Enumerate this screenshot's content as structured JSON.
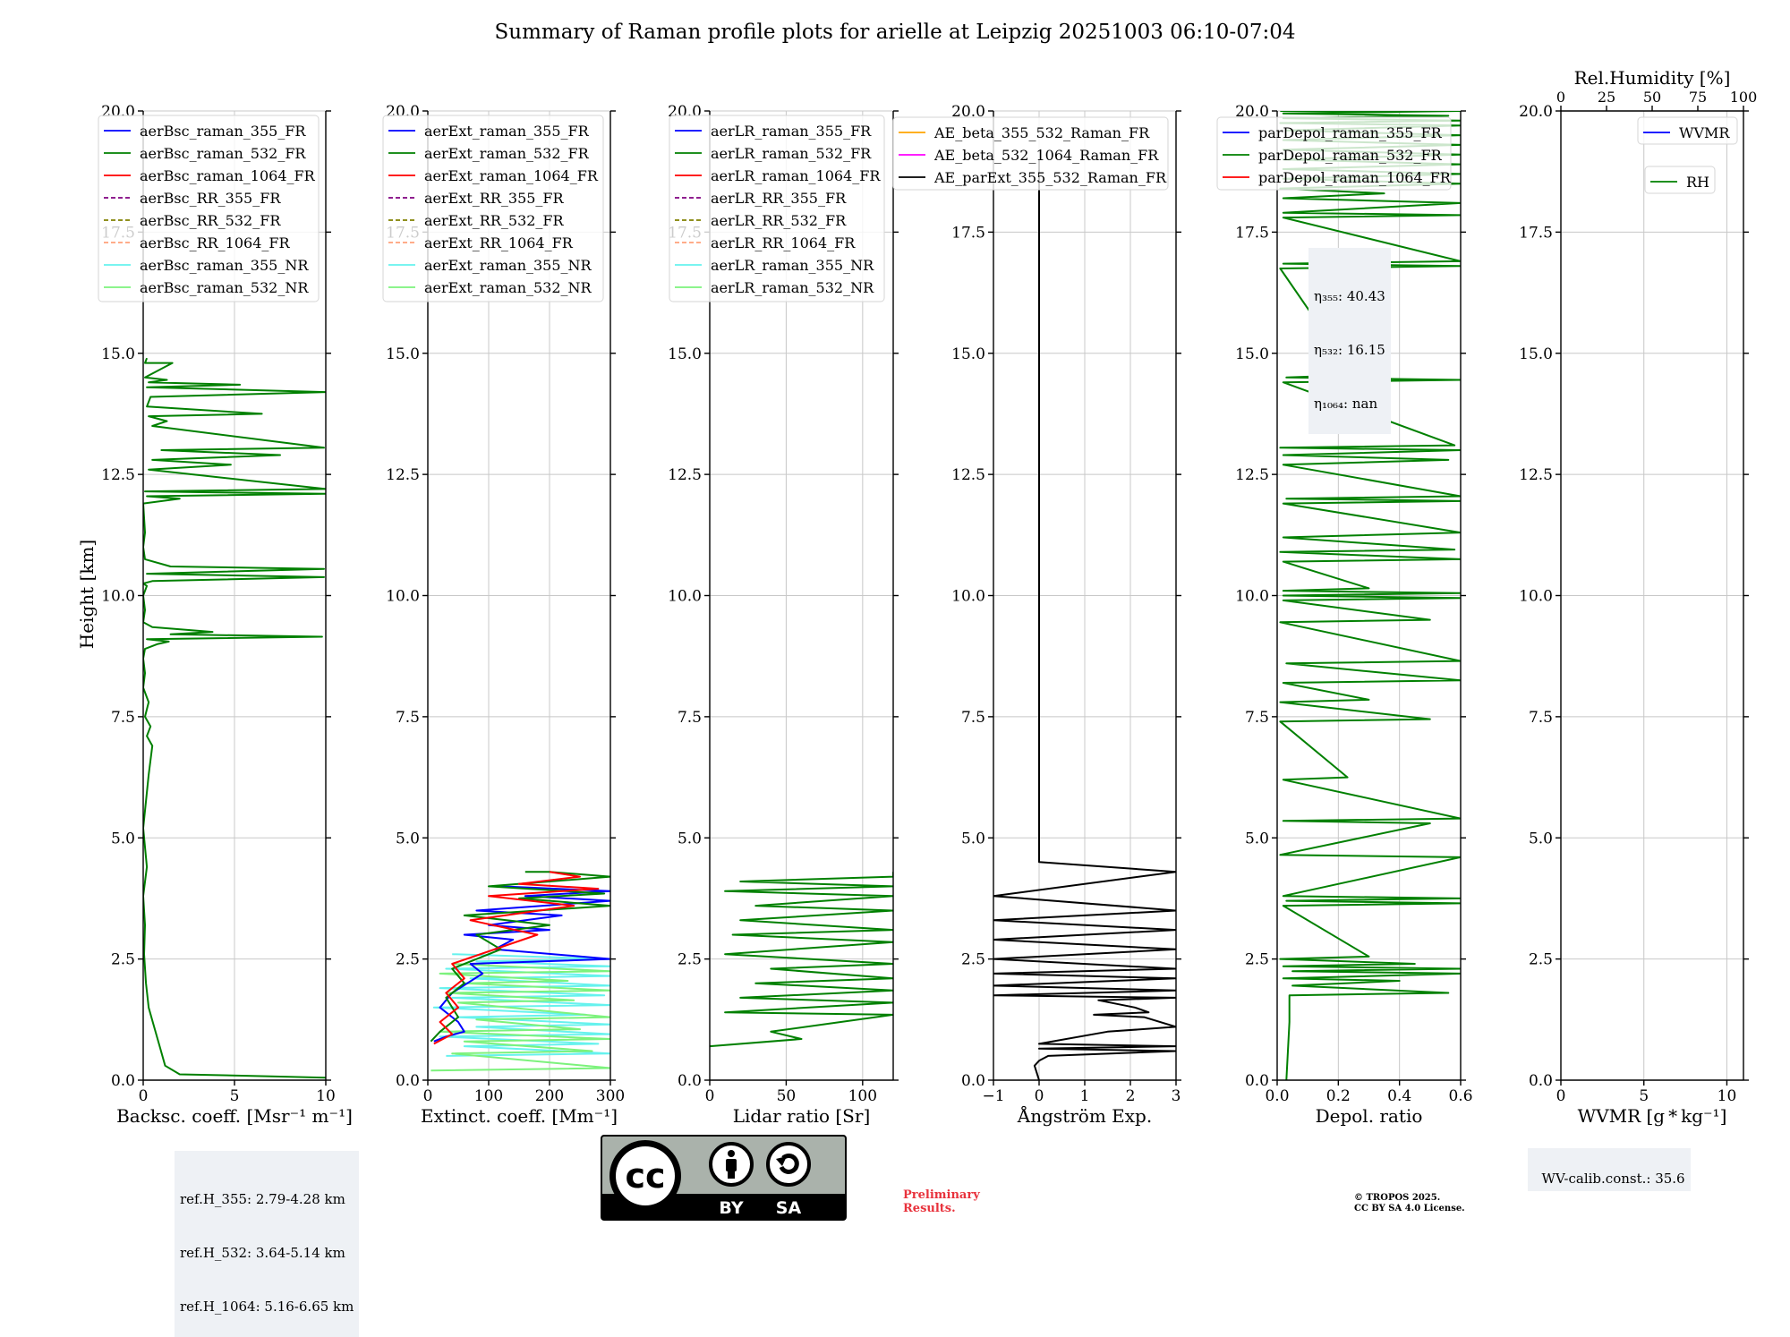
{
  "figure": {
    "title": "Summary of Raman profile plots for arielle at Leipzig 20251003 06:10-07:04",
    "ylabel": "Height [km]",
    "ylim": [
      0,
      20
    ],
    "yticks": [
      "0.0",
      "2.5",
      "5.0",
      "7.5",
      "10.0",
      "12.5",
      "15.0",
      "17.5",
      "20.0"
    ]
  },
  "colors": {
    "blue": "#0000ff",
    "green": "#008000",
    "red": "#ff0000",
    "purple": "#800080",
    "olive": "#808000",
    "salmon": "#ffa07a",
    "cyan": "#66f2ee",
    "lightgreen": "#7cf27c",
    "orange": "#ffa500",
    "magenta": "#ff00ff",
    "black": "#000000"
  },
  "chart_data": [
    {
      "type": "line",
      "id": "bsc",
      "xlabel": "Backsc. coeff. [Msr⁻¹ m⁻¹]",
      "xlim": [
        0,
        10
      ],
      "xticks": [
        0,
        5,
        10
      ],
      "xticklabels": [
        "0",
        "5",
        "10"
      ],
      "legend": [
        {
          "label": "aerBsc_raman_355_FR",
          "color": "#0000ff",
          "style": "solid"
        },
        {
          "label": "aerBsc_raman_532_FR",
          "color": "#008000",
          "style": "solid"
        },
        {
          "label": "aerBsc_raman_1064_FR",
          "color": "#ff0000",
          "style": "solid"
        },
        {
          "label": "aerBsc_RR_355_FR",
          "color": "#800080",
          "style": "dashed"
        },
        {
          "label": "aerBsc_RR_532_FR",
          "color": "#808000",
          "style": "dashed"
        },
        {
          "label": "aerBsc_RR_1064_FR",
          "color": "#ffa07a",
          "style": "dashed"
        },
        {
          "label": "aerBsc_raman_355_NR",
          "color": "#66f2ee",
          "style": "solid"
        },
        {
          "label": "aerBsc_raman_532_NR",
          "color": "#7cf27c",
          "style": "solid"
        }
      ],
      "series": [
        {
          "name": "aerBsc_raman_532_FR",
          "color": "#008000",
          "x": [
            10,
            7,
            2,
            1.2,
            0.9,
            0.6,
            0.3,
            0.15,
            0.05,
            0.1,
            0,
            0.2,
            0,
            0.3,
            0.5,
            0.2,
            0.4,
            0.1,
            0.3,
            0,
            0.1,
            0,
            0.1,
            0.8,
            1.4,
            0.2,
            9.8,
            1.5,
            3.8,
            0.5,
            0,
            0.1,
            0,
            0.2,
            0,
            0.5,
            9.9,
            0.2,
            9.9,
            1.5,
            0.1,
            0,
            0.1,
            0,
            2,
            0.2,
            10,
            0.1,
            10,
            0.3,
            4.8,
            0.5,
            7.5,
            1,
            9.9,
            0.5,
            1.3,
            0.3,
            6.5,
            0.2,
            0.4,
            10,
            0.2,
            5.3,
            0.3,
            1.3,
            0.1,
            1.6,
            0.1,
            0.2
          ],
          "y": [
            0.05,
            0.08,
            0.12,
            0.3,
            0.7,
            1.1,
            1.5,
            2.0,
            2.6,
            3.2,
            3.8,
            4.4,
            5.2,
            6.3,
            6.9,
            7.1,
            7.3,
            7.5,
            7.8,
            8.1,
            8.4,
            8.7,
            8.9,
            9.0,
            9.05,
            9.1,
            9.15,
            9.2,
            9.25,
            9.35,
            9.45,
            9.7,
            10.0,
            10.2,
            10.25,
            10.3,
            10.38,
            10.45,
            10.55,
            10.6,
            10.75,
            11.0,
            11.3,
            11.9,
            12.0,
            12.05,
            12.1,
            12.15,
            12.2,
            12.6,
            12.7,
            12.8,
            12.9,
            13.0,
            13.05,
            13.5,
            13.6,
            13.7,
            13.75,
            13.9,
            14.1,
            14.2,
            14.3,
            14.35,
            14.4,
            14.45,
            14.5,
            14.8,
            14.8,
            14.9
          ]
        }
      ]
    },
    {
      "type": "line",
      "id": "ext",
      "xlabel": "Extinct. coeff. [Mm⁻¹]",
      "xlim": [
        0,
        300
      ],
      "xticks": [
        0,
        100,
        200,
        300
      ],
      "xticklabels": [
        "0",
        "100",
        "200",
        "300"
      ],
      "legend": [
        {
          "label": "aerExt_raman_355_FR",
          "color": "#0000ff",
          "style": "solid"
        },
        {
          "label": "aerExt_raman_532_FR",
          "color": "#008000",
          "style": "solid"
        },
        {
          "label": "aerExt_raman_1064_FR",
          "color": "#ff0000",
          "style": "solid"
        },
        {
          "label": "aerExt_RR_355_FR",
          "color": "#800080",
          "style": "dashed"
        },
        {
          "label": "aerExt_RR_532_FR",
          "color": "#808000",
          "style": "dashed"
        },
        {
          "label": "aerExt_RR_1064_FR",
          "color": "#ffa07a",
          "style": "dashed"
        },
        {
          "label": "aerExt_raman_355_NR",
          "color": "#66f2ee",
          "style": "solid"
        },
        {
          "label": "aerExt_raman_532_NR",
          "color": "#7cf27c",
          "style": "solid"
        }
      ],
      "series": [
        {
          "name": "aerExt_raman_355_NR",
          "color": "#66f2ee",
          "x": [
            30,
            300,
            60,
            280,
            20,
            300,
            80,
            300,
            50,
            260,
            10,
            300,
            40,
            290,
            20,
            300,
            70,
            300,
            30,
            300,
            80,
            300,
            40
          ],
          "y": [
            0.5,
            0.55,
            0.7,
            0.75,
            0.9,
            0.95,
            1.1,
            1.15,
            1.3,
            1.35,
            1.5,
            1.55,
            1.7,
            1.75,
            1.9,
            1.95,
            2.1,
            2.15,
            2.3,
            2.35,
            2.45,
            2.5,
            2.6
          ]
        },
        {
          "name": "aerExt_raman_532_NR",
          "color": "#7cf27c",
          "x": [
            5,
            300,
            40,
            270,
            60,
            300,
            20,
            250,
            80,
            300,
            50,
            240,
            30,
            300,
            60,
            230,
            20,
            300,
            40
          ],
          "y": [
            0.2,
            0.25,
            0.55,
            0.6,
            0.8,
            0.85,
            1.0,
            1.05,
            1.25,
            1.3,
            1.6,
            1.65,
            1.8,
            1.85,
            2.0,
            2.05,
            2.2,
            2.25,
            2.4
          ]
        },
        {
          "name": "aerExt_raman_355_FR",
          "color": "#0000ff",
          "x": [
            10,
            30,
            60,
            50,
            20,
            40,
            90,
            70,
            300,
            110,
            140,
            60,
            200,
            100,
            220,
            80,
            300,
            160,
            300,
            120
          ],
          "y": [
            0.8,
            0.9,
            1.0,
            1.2,
            1.5,
            1.8,
            2.2,
            2.4,
            2.5,
            2.7,
            2.9,
            3.0,
            3.1,
            3.2,
            3.4,
            3.5,
            3.7,
            3.8,
            3.9,
            4.0
          ]
        },
        {
          "name": "aerExt_raman_532_FR",
          "color": "#008000",
          "x": [
            5,
            20,
            50,
            30,
            60,
            40,
            120,
            80,
            200,
            60,
            300,
            150,
            290,
            100,
            300,
            200,
            160
          ],
          "y": [
            0.8,
            1.0,
            1.3,
            1.7,
            2.0,
            2.3,
            2.7,
            3.0,
            3.2,
            3.4,
            3.6,
            3.75,
            3.85,
            4.0,
            4.2,
            4.3,
            4.3
          ]
        },
        {
          "name": "aerExt_raman_1064_FR",
          "color": "#ff0000",
          "x": [
            10,
            40,
            20,
            50,
            30,
            60,
            40,
            180,
            70,
            240,
            100,
            280,
            150,
            250,
            200
          ],
          "y": [
            0.75,
            0.95,
            1.2,
            1.5,
            1.8,
            2.1,
            2.4,
            3.0,
            3.3,
            3.6,
            3.8,
            3.95,
            4.05,
            4.2,
            4.3
          ]
        }
      ]
    },
    {
      "type": "line",
      "id": "lr",
      "xlabel": "Lidar ratio [Sr]",
      "xlim": [
        0,
        120
      ],
      "xticks": [
        0,
        50,
        100
      ],
      "xticklabels": [
        "0",
        "50",
        "100"
      ],
      "legend": [
        {
          "label": "aerLR_raman_355_FR",
          "color": "#0000ff",
          "style": "solid"
        },
        {
          "label": "aerLR_raman_532_FR",
          "color": "#008000",
          "style": "solid"
        },
        {
          "label": "aerLR_raman_1064_FR",
          "color": "#ff0000",
          "style": "solid"
        },
        {
          "label": "aerLR_RR_355_FR",
          "color": "#800080",
          "style": "dashed"
        },
        {
          "label": "aerLR_RR_532_FR",
          "color": "#808000",
          "style": "dashed"
        },
        {
          "label": "aerLR_RR_1064_FR",
          "color": "#ffa07a",
          "style": "dashed"
        },
        {
          "label": "aerLR_raman_355_NR",
          "color": "#66f2ee",
          "style": "solid"
        },
        {
          "label": "aerLR_raman_532_NR",
          "color": "#7cf27c",
          "style": "solid"
        }
      ],
      "series": [
        {
          "name": "aerLR_raman_532_FR",
          "color": "#008000",
          "x": [
            0,
            60,
            40,
            120,
            10,
            120,
            20,
            120,
            30,
            120,
            40,
            120,
            10,
            120,
            15,
            120,
            20,
            120,
            30,
            120,
            10,
            120,
            20,
            120,
            120
          ],
          "y": [
            0.7,
            0.85,
            1.0,
            1.35,
            1.4,
            1.6,
            1.7,
            1.85,
            2.0,
            2.1,
            2.3,
            2.4,
            2.6,
            2.85,
            3.0,
            3.1,
            3.3,
            3.5,
            3.6,
            3.8,
            3.9,
            4.0,
            4.1,
            4.2,
            4.3
          ]
        }
      ]
    },
    {
      "type": "line",
      "id": "ae",
      "xlabel": "Ångström Exp.",
      "xlim": [
        -1,
        3
      ],
      "xticks": [
        -1,
        0,
        1,
        2,
        3
      ],
      "xticklabels": [
        "−1",
        "0",
        "1",
        "2",
        "3"
      ],
      "legend": [
        {
          "label": "AE_beta_355_532_Raman_FR",
          "color": "#ffa500",
          "style": "solid"
        },
        {
          "label": "AE_beta_532_1064_Raman_FR",
          "color": "#ff00ff",
          "style": "solid"
        },
        {
          "label": "AE_parExt_355_532_Raman_FR",
          "color": "#000000",
          "style": "solid"
        }
      ],
      "series": [
        {
          "name": "AE_parExt_355_532_Raman_FR",
          "color": "#000000",
          "x": [
            0,
            0,
            3,
            -1,
            3,
            -1,
            3,
            -1,
            3,
            -1,
            3,
            -1,
            3,
            -1,
            3,
            -1,
            3,
            1.3,
            2.1,
            2.4,
            1.2,
            2.3,
            3,
            1.5,
            0,
            3,
            0,
            3,
            0.2,
            0,
            -0.1,
            0
          ],
          "y": [
            19.0,
            4.5,
            4.3,
            3.8,
            3.5,
            3.3,
            3.1,
            2.9,
            2.7,
            2.5,
            2.3,
            2.2,
            2.1,
            1.95,
            1.85,
            1.75,
            1.7,
            1.65,
            1.5,
            1.4,
            1.35,
            1.3,
            1.1,
            1.0,
            0.75,
            0.7,
            0.65,
            0.6,
            0.5,
            0.4,
            0.3,
            0
          ]
        }
      ]
    },
    {
      "type": "line",
      "id": "dep",
      "xlabel": "Depol. ratio",
      "xlim": [
        0,
        0.6
      ],
      "xticks": [
        0,
        0.2,
        0.4,
        0.6
      ],
      "xticklabels": [
        "0.0",
        "0.2",
        "0.4",
        "0.6"
      ],
      "legend": [
        {
          "label": "parDepol_raman_355_FR",
          "color": "#0000ff",
          "style": "solid"
        },
        {
          "label": "parDepol_raman_532_FR",
          "color": "#008000",
          "style": "solid"
        },
        {
          "label": "parDepol_raman_1064_FR",
          "color": "#ff0000",
          "style": "solid"
        }
      ],
      "annotation": [
        "η₃₅₅: 40.43",
        "η₅₃₂: 16.15",
        "η₁₀₆₄: nan"
      ],
      "series": [
        {
          "name": "parDepol_raman_532_FR",
          "color": "#008000",
          "x": [
            0.03,
            0.035,
            0.04,
            0.04,
            0.56,
            0.05,
            0.4,
            0.02,
            0.6,
            0.05,
            0.6,
            0.02,
            0.45,
            0.01,
            0.3,
            0.02,
            0.6,
            0.03,
            0.6,
            0.02,
            0.6,
            0.01,
            0.5,
            0.02,
            0.6,
            0.02,
            0.23,
            0.01,
            0.5,
            0.01,
            0.3,
            0.02,
            0.6,
            0.03,
            0.6,
            0.01,
            0.5,
            0.02,
            0.6,
            0.02,
            0.6,
            0.02,
            0.3,
            0.02,
            0.6,
            0.01,
            0.58,
            0.02,
            0.6,
            0.02,
            0.6,
            0.03,
            0.6,
            0.02,
            0.56,
            0.02,
            0.6,
            0.01,
            0.58,
            0.02,
            0.6,
            0.03,
            0.25,
            0.01,
            0.6,
            0.02,
            0.6,
            0.02,
            0.6,
            0.02,
            0.6,
            0.02,
            0.35,
            0.01,
            0.6,
            0.02,
            0.6,
            0.02,
            0.6,
            0.02,
            0.6,
            0.02,
            0.6,
            0.02,
            0.6,
            0.03,
            0.6,
            0.01,
            0.6,
            0.02,
            0.56,
            0.02,
            0.6,
            0.01
          ],
          "y": [
            0,
            0.6,
            1.2,
            1.75,
            1.8,
            1.95,
            2.05,
            2.1,
            2.2,
            2.25,
            2.3,
            2.35,
            2.4,
            2.5,
            2.55,
            3.6,
            3.65,
            3.7,
            3.75,
            3.8,
            4.6,
            4.65,
            5.3,
            5.35,
            5.4,
            6.2,
            6.25,
            7.4,
            7.45,
            7.8,
            7.85,
            8.2,
            8.25,
            8.6,
            8.65,
            9.45,
            9.5,
            9.9,
            9.95,
            10.0,
            10.05,
            10.1,
            10.15,
            10.7,
            10.75,
            10.9,
            10.95,
            11.2,
            11.3,
            11.9,
            11.95,
            12.0,
            12.05,
            12.7,
            12.8,
            12.9,
            13.0,
            13.05,
            13.1,
            14.4,
            14.45,
            14.5,
            14.55,
            16.75,
            16.8,
            16.85,
            16.9,
            17.8,
            17.85,
            17.9,
            18.1,
            18.2,
            18.3,
            18.4,
            18.5,
            18.6,
            18.7,
            18.8,
            18.9,
            19.0,
            19.1,
            19.2,
            19.3,
            19.4,
            19.5,
            19.6,
            19.7,
            19.75,
            19.8,
            19.85,
            19.9,
            19.95,
            20.0,
            20.0
          ]
        }
      ]
    },
    {
      "type": "line",
      "id": "wv",
      "xlabel": "WVMR [g * kg⁻¹]",
      "xlim": [
        0,
        11
      ],
      "xticks": [
        0,
        5,
        10
      ],
      "xticklabels": [
        "0",
        "5",
        "10"
      ],
      "top_xlabel": "Rel.Humidity [%]",
      "top_xlim": [
        0,
        100
      ],
      "top_xticks": [
        0,
        25,
        50,
        75,
        100
      ],
      "top_xticklabels": [
        "0",
        "25",
        "50",
        "75",
        "100"
      ],
      "legend": [
        {
          "label": "WVMR",
          "color": "#0000ff",
          "style": "solid"
        }
      ],
      "legend2": [
        {
          "label": "RH",
          "color": "#008000",
          "style": "solid"
        }
      ],
      "series": []
    }
  ],
  "annotations": {
    "refH": [
      "ref.H_355: 2.79-4.28 km",
      "ref.H_532: 3.64-5.14 km",
      "ref.H_1064: 5.16-6.65 km"
    ],
    "wv_calib": "WV-calib.const.: 35.6",
    "preliminary": [
      "Preliminary",
      "Results."
    ],
    "copyright": [
      "© TROPOS 2025.",
      "CC BY SA 4.0 License."
    ],
    "cc_logo": {
      "badge_letters": "cc",
      "by": "BY",
      "sa": "SA"
    }
  }
}
